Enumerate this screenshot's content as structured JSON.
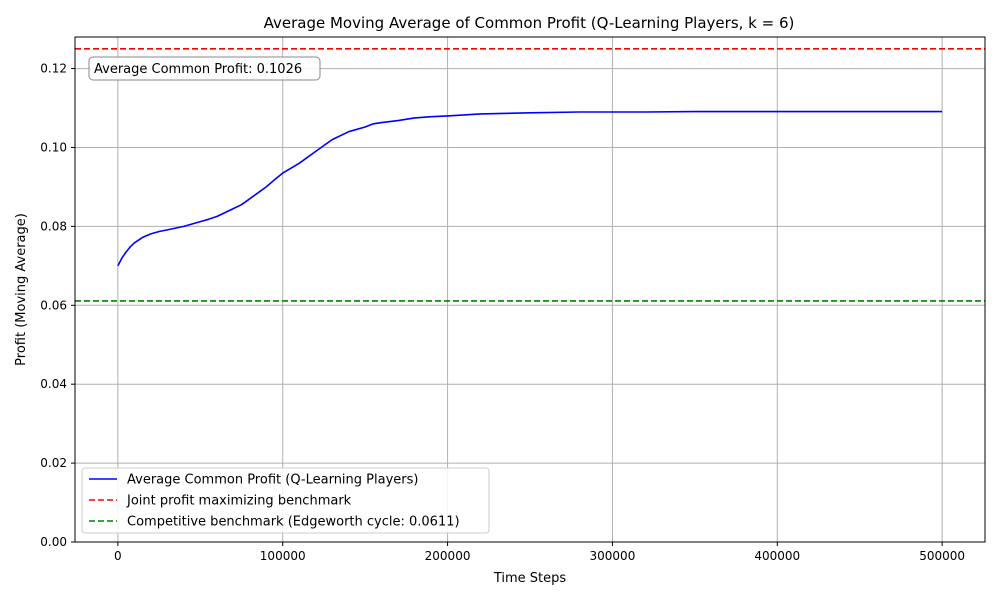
{
  "chart_data": {
    "type": "line",
    "title": "Average Moving Average of Common Profit (Q-Learning Players, k = 6)",
    "xlabel": "Time Steps",
    "ylabel": "Profit (Moving Average)",
    "xlim": [
      -26000,
      526000
    ],
    "ylim": [
      0.0,
      0.128
    ],
    "xticks": [
      0,
      100000,
      200000,
      300000,
      400000,
      500000
    ],
    "xtick_labels": [
      "0",
      "100000",
      "200000",
      "300000",
      "400000",
      "500000"
    ],
    "yticks": [
      0.0,
      0.02,
      0.04,
      0.06,
      0.08,
      0.1,
      0.12
    ],
    "ytick_labels": [
      "0.00",
      "0.02",
      "0.04",
      "0.06",
      "0.08",
      "0.10",
      "0.12"
    ],
    "grid": true,
    "legend_placement": "lower-left",
    "annotation": "Average Common Profit: 0.1026",
    "series": [
      {
        "name": "Average Common Profit (Q-Learning Players)",
        "color": "#0000ff",
        "style": "solid",
        "x": [
          0,
          2500,
          5000,
          7500,
          10000,
          15000,
          20000,
          25000,
          30000,
          40000,
          50000,
          55000,
          60000,
          65000,
          70000,
          75000,
          80000,
          85000,
          90000,
          95000,
          100000,
          110000,
          120000,
          125000,
          130000,
          140000,
          150000,
          155000,
          160000,
          170000,
          180000,
          190000,
          200000,
          220000,
          250000,
          280000,
          300000,
          320000,
          350000,
          400000,
          450000,
          500000
        ],
        "y": [
          0.07,
          0.072,
          0.0735,
          0.0748,
          0.0758,
          0.0772,
          0.0781,
          0.0787,
          0.0791,
          0.08,
          0.0812,
          0.0818,
          0.0825,
          0.0835,
          0.0845,
          0.0855,
          0.087,
          0.0885,
          0.09,
          0.0918,
          0.0935,
          0.096,
          0.099,
          0.1005,
          0.102,
          0.104,
          0.1052,
          0.106,
          0.1063,
          0.1068,
          0.1075,
          0.1078,
          0.108,
          0.1085,
          0.1088,
          0.109,
          0.109,
          0.109,
          0.1091,
          0.1091,
          0.1091,
          0.1091
        ]
      },
      {
        "name": "Joint profit maximizing benchmark",
        "color": "#ff0000",
        "style": "dashed",
        "y_constant": 0.125
      },
      {
        "name": "Competitive benchmark (Edgeworth cycle: 0.0611)",
        "color": "#008000",
        "style": "dashed",
        "y_constant": 0.0611
      }
    ]
  }
}
